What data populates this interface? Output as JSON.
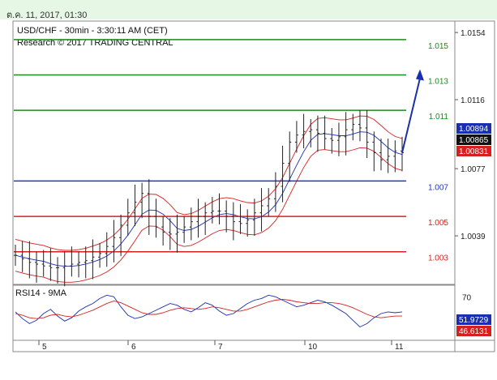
{
  "header": {
    "date": "ต.ค. 11, 2017, 01:30"
  },
  "chart_data": [
    {
      "type": "candlestick",
      "title": "USD/CHF - 30min - 3:30:11 AM (CET)",
      "subtitle": "Research © 2017 TRADING CENTRAL",
      "y_ticks": [
        "1.0154",
        "1.0116",
        "1.0077",
        "1.0039"
      ],
      "x_ticks": [
        "5",
        "6",
        "7",
        "10",
        "11"
      ],
      "levels": [
        {
          "label": "1.015",
          "value": 1.015,
          "color": "#1a8a1a"
        },
        {
          "label": "1.013",
          "value": 1.013,
          "color": "#1a8a1a"
        },
        {
          "label": "1.011",
          "value": 1.011,
          "color": "#1a8a1a"
        },
        {
          "label": "1.007",
          "value": 1.007,
          "color": "#1f35c4"
        },
        {
          "label": "1.005",
          "value": 1.005,
          "color": "#d62020"
        },
        {
          "label": "1.003",
          "value": 1.003,
          "color": "#d62020"
        }
      ],
      "price_boxes": [
        {
          "label": "1.00894",
          "value": 1.00894,
          "color": "#1a2fb0"
        },
        {
          "label": "1.00865",
          "value": 1.00865,
          "color": "#111111"
        },
        {
          "label": "1.00831",
          "value": 1.00831,
          "color": "#d62020"
        }
      ],
      "ylim": [
        1.0012,
        1.016
      ],
      "close_series": [
        1.0028,
        1.0026,
        1.0024,
        1.0023,
        1.0022,
        1.0021,
        1.0021,
        1.0022,
        1.0023,
        1.0024,
        1.0025,
        1.0027,
        1.0029,
        1.0033,
        1.0038,
        1.0045,
        1.0052,
        1.0058,
        1.0063,
        1.005,
        1.0044,
        1.0041,
        1.004,
        1.0041,
        1.0044,
        1.0047,
        1.005,
        1.0052,
        1.0053,
        1.0053,
        1.005,
        1.0047,
        1.0046,
        1.0048,
        1.0052,
        1.0056,
        1.006,
        1.0067,
        1.008,
        1.0092,
        1.0096,
        1.0098,
        1.0099,
        1.0097,
        1.0094,
        1.0093,
        1.0095,
        1.0099,
        1.0102,
        1.01,
        1.0092,
        1.0086,
        1.0082,
        1.0084,
        1.0087,
        1.0086
      ]
    },
    {
      "type": "line",
      "title": "RSI14 - 9MA",
      "y_ticks": [
        "70"
      ],
      "price_boxes": [
        {
          "label": "51.9729",
          "value": 51.9729,
          "color": "#1a2fb0"
        },
        {
          "label": "46.6131",
          "value": 46.6131,
          "color": "#d62020"
        }
      ],
      "ylim": [
        20,
        80
      ],
      "series": [
        {
          "color": "#1a2fb0",
          "values": [
            52,
            44,
            38,
            42,
            50,
            55,
            47,
            41,
            45,
            53,
            58,
            62,
            68,
            72,
            70,
            58,
            48,
            44,
            46,
            50,
            54,
            58,
            62,
            60,
            55,
            52,
            57,
            63,
            60,
            53,
            48,
            50,
            56,
            62,
            66,
            68,
            72,
            70,
            66,
            62,
            58,
            60,
            63,
            66,
            64,
            60,
            55,
            50,
            42,
            34,
            38,
            45,
            50,
            52,
            51,
            52
          ]
        },
        {
          "color": "#d62020",
          "values": [
            50,
            48,
            45,
            44,
            45,
            48,
            49,
            47,
            46,
            48,
            51,
            54,
            58,
            62,
            65,
            63,
            59,
            55,
            51,
            49,
            49,
            51,
            54,
            56,
            57,
            56,
            55,
            56,
            58,
            57,
            55,
            53,
            53,
            55,
            58,
            61,
            64,
            66,
            67,
            66,
            64,
            63,
            62,
            62,
            63,
            63,
            62,
            60,
            57,
            53,
            49,
            46,
            45,
            46,
            47,
            47
          ]
        }
      ]
    }
  ]
}
